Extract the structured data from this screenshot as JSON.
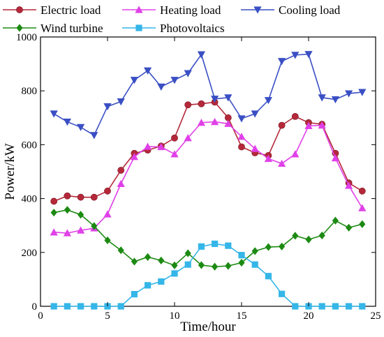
{
  "chart_data": {
    "type": "line",
    "xlabel": "Time/hour",
    "ylabel": "Power/kW",
    "xlim": [
      0,
      25
    ],
    "ylim": [
      0,
      1000
    ],
    "xticks": [
      0,
      5,
      10,
      15,
      20,
      25
    ],
    "yticks": [
      0,
      200,
      400,
      600,
      800,
      1000
    ],
    "grid": false,
    "legend_position": "top",
    "x": [
      1,
      2,
      3,
      4,
      5,
      6,
      7,
      8,
      9,
      10,
      11,
      12,
      13,
      14,
      15,
      16,
      17,
      18,
      19,
      20,
      21,
      22,
      23,
      24
    ],
    "series": [
      {
        "name": "Electric load",
        "color": "#b5283a",
        "marker": "circle",
        "values": [
          390,
          410,
          405,
          405,
          428,
          505,
          568,
          580,
          595,
          625,
          748,
          752,
          758,
          700,
          592,
          570,
          560,
          672,
          705,
          682,
          676,
          568,
          458,
          428
        ]
      },
      {
        "name": "Heating load",
        "color": "#e040e8",
        "marker": "triangle-up",
        "values": [
          275,
          272,
          282,
          290,
          342,
          455,
          555,
          593,
          592,
          565,
          625,
          682,
          685,
          678,
          630,
          585,
          548,
          530,
          565,
          670,
          672,
          550,
          448,
          365
        ]
      },
      {
        "name": "Cooling load",
        "color": "#3a4fc4",
        "marker": "triangle-down",
        "values": [
          715,
          685,
          665,
          635,
          742,
          760,
          840,
          875,
          815,
          840,
          865,
          935,
          770,
          775,
          697,
          715,
          765,
          910,
          933,
          936,
          775,
          768,
          790,
          795
        ]
      },
      {
        "name": "Wind turbine",
        "color": "#1c8a12",
        "marker": "diamond",
        "values": [
          348,
          358,
          340,
          298,
          245,
          208,
          166,
          183,
          170,
          152,
          197,
          153,
          147,
          150,
          162,
          205,
          220,
          222,
          262,
          248,
          263,
          318,
          292,
          305
        ]
      },
      {
        "name": "Photovoltaics",
        "color": "#35b6e8",
        "marker": "square",
        "values": [
          0,
          0,
          0,
          0,
          0,
          0,
          45,
          78,
          92,
          122,
          155,
          222,
          232,
          225,
          190,
          155,
          112,
          46,
          0,
          0,
          0,
          0,
          0,
          0
        ]
      }
    ]
  }
}
